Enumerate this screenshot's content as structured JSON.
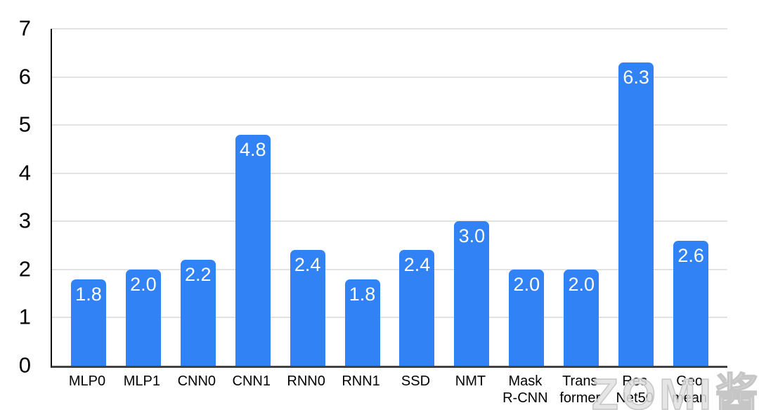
{
  "watermark_text": "ZOMI酱",
  "chart_data": {
    "type": "bar",
    "title": "",
    "xlabel": "",
    "ylabel": "",
    "categories": [
      "MLP0",
      "MLP1",
      "CNN0",
      "CNN1",
      "RNN0",
      "RNN1",
      "SSD",
      "NMT",
      "Mask R-CNN",
      "Transformer",
      "ResNet50",
      "Geo mean"
    ],
    "category_lines": [
      [
        "MLP0"
      ],
      [
        "MLP1"
      ],
      [
        "CNN0"
      ],
      [
        "CNN1"
      ],
      [
        "RNN0"
      ],
      [
        "RNN1"
      ],
      [
        "SSD"
      ],
      [
        "NMT"
      ],
      [
        "Mask",
        "R-CNN"
      ],
      [
        "Trans",
        "former"
      ],
      [
        "Res",
        "Net50"
      ],
      [
        "Geo",
        "mean"
      ]
    ],
    "values": [
      1.8,
      2.0,
      2.2,
      4.8,
      2.4,
      1.8,
      2.4,
      3.0,
      2.0,
      2.0,
      6.3,
      2.6
    ],
    "value_labels": [
      "1.8",
      "2.0",
      "2.2",
      "4.8",
      "2.4",
      "1.8",
      "2.4",
      "3.0",
      "2.0",
      "2.0",
      "6.3",
      "2.6"
    ],
    "ylim": [
      0,
      7
    ],
    "yticks": [
      0,
      1,
      2,
      3,
      4,
      5,
      6,
      7
    ],
    "grid": true,
    "legend": "none",
    "bar_color": "#3082f5",
    "value_label_color": "#ffffff",
    "gridline_color": "#e2e2e2",
    "axis_line_color": "#111111",
    "baseline_color": "#424242"
  }
}
